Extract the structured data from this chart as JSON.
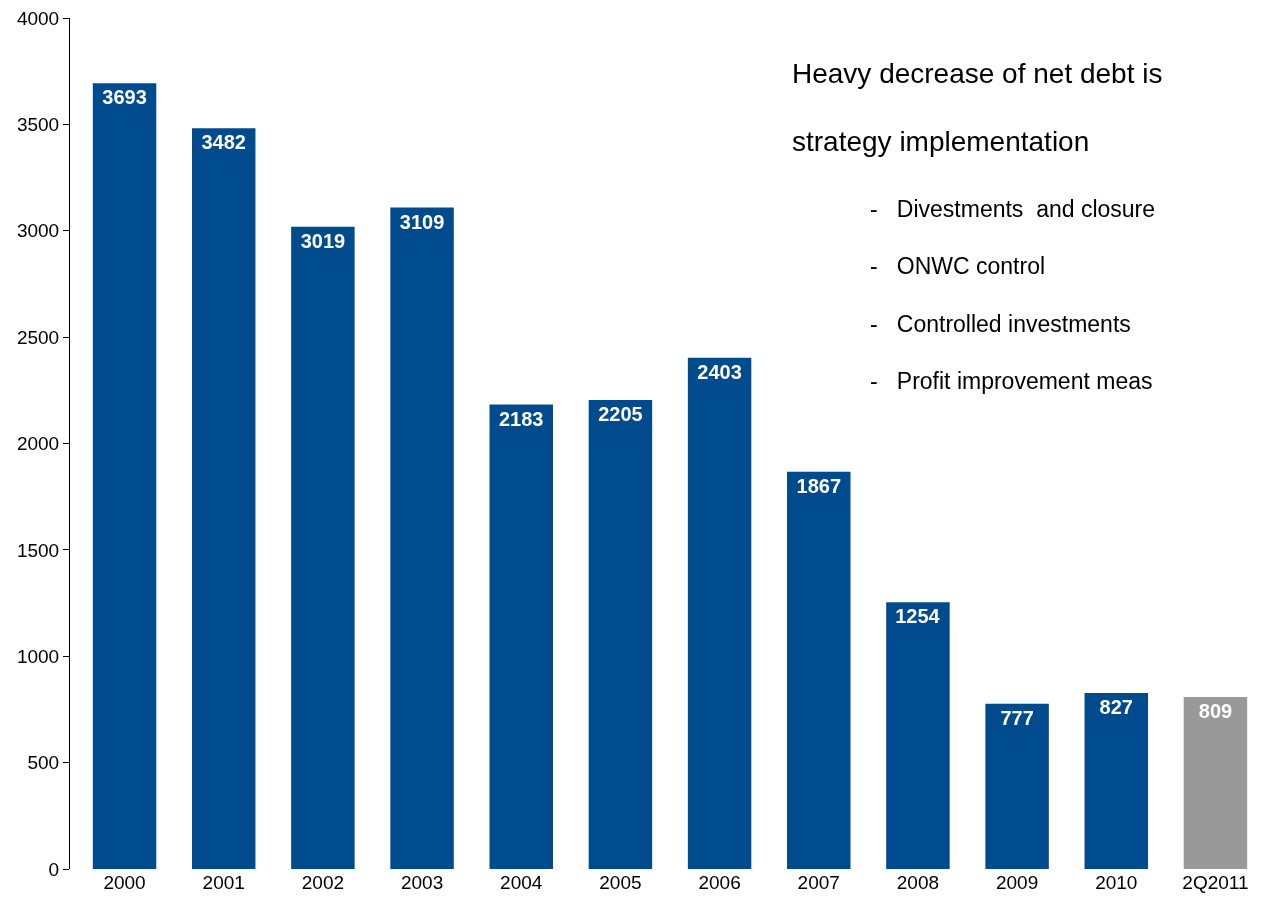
{
  "chart_data": {
    "type": "bar",
    "categories": [
      "2000",
      "2001",
      "2002",
      "2003",
      "2004",
      "2005",
      "2006",
      "2007",
      "2008",
      "2009",
      "2010",
      "2Q2011"
    ],
    "values": [
      3693,
      3482,
      3019,
      3109,
      2183,
      2205,
      2403,
      1867,
      1254,
      777,
      827,
      809
    ],
    "colors": [
      "#004b8d",
      "#004b8d",
      "#004b8d",
      "#004b8d",
      "#004b8d",
      "#004b8d",
      "#004b8d",
      "#004b8d",
      "#004b8d",
      "#004b8d",
      "#004b8d",
      "#999999"
    ],
    "ylim": [
      0,
      4000
    ],
    "yticks": [
      0,
      500,
      1000,
      1500,
      2000,
      2500,
      3000,
      3500,
      4000
    ],
    "data_labels": true,
    "grid": false,
    "annotations": [
      "Heavy decrease of net debt is",
      "strategy implementation",
      "-   Divestments  and closure",
      "-   ONWC control",
      "-   Controlled investments",
      "-   Profit improvement meas"
    ]
  }
}
